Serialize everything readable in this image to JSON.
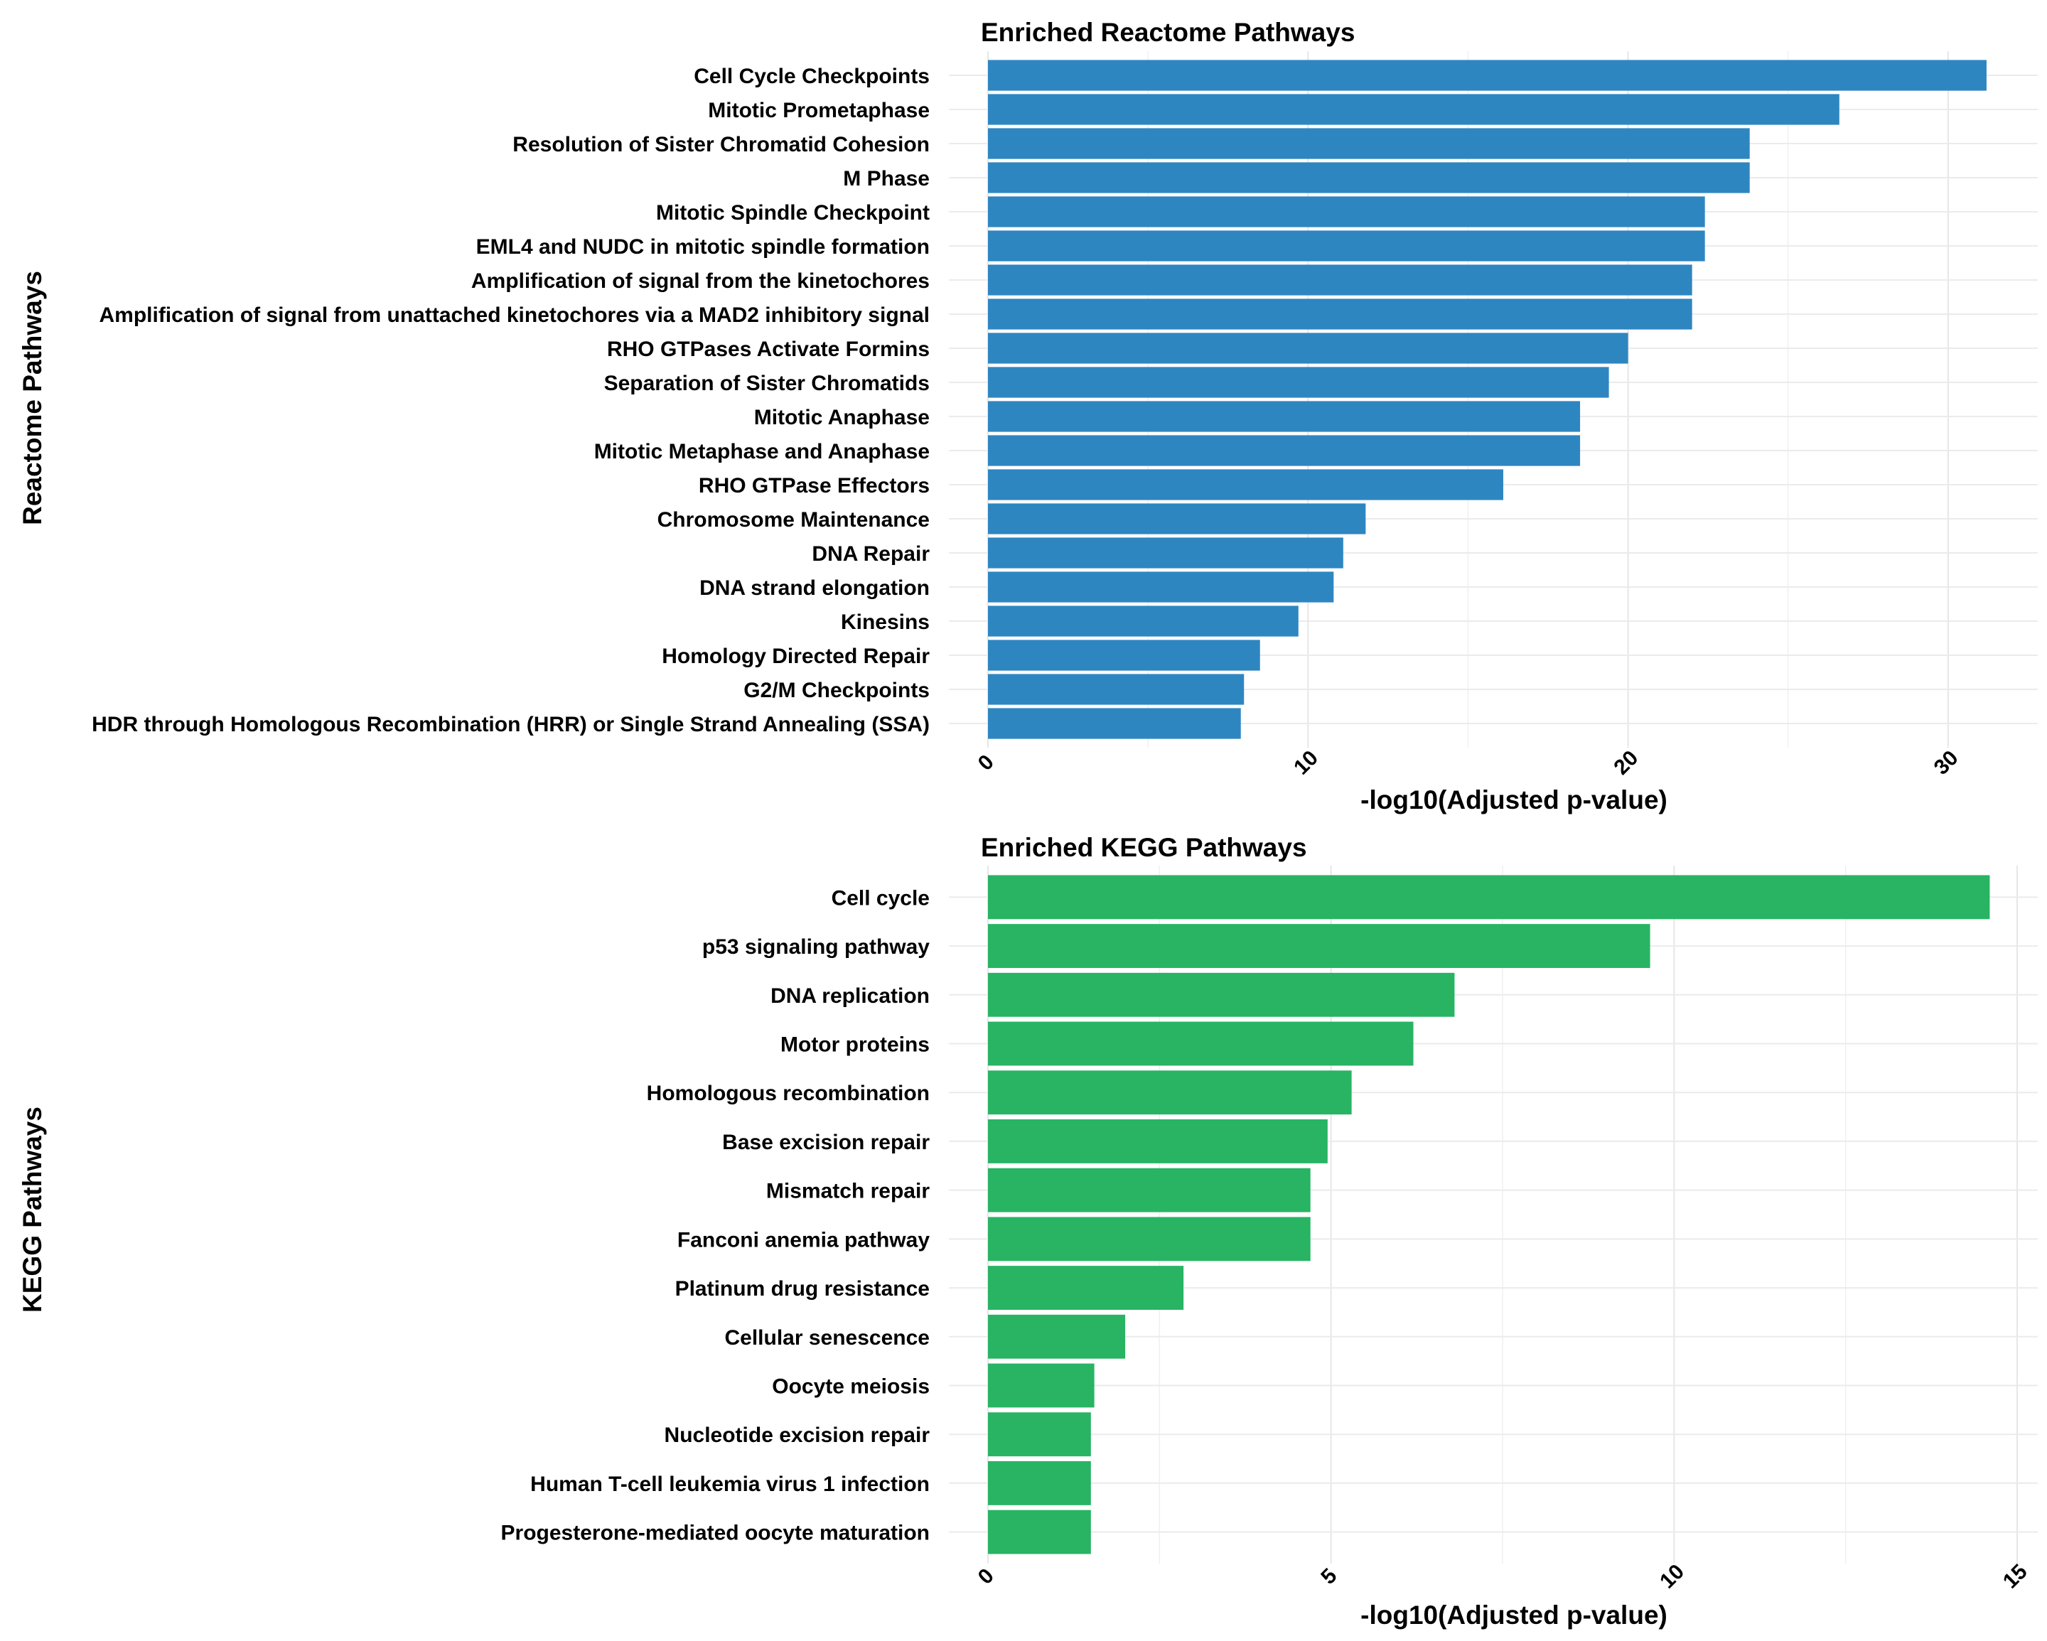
{
  "chart_data": [
    {
      "type": "bar",
      "orientation": "horizontal",
      "title": "Enriched Reactome Pathways",
      "xlabel": "-log10(Adjusted p-value)",
      "ylabel": "Reactome Pathways",
      "color": "#2E86C1",
      "xlim": [
        0,
        32.8
      ],
      "xticks": [
        0,
        10,
        20,
        30
      ],
      "grid": true,
      "categories": [
        "Cell Cycle Checkpoints",
        "Mitotic Prometaphase",
        "Resolution of Sister Chromatid Cohesion",
        "M Phase",
        "Mitotic Spindle Checkpoint",
        "EML4 and NUDC in mitotic spindle formation",
        "Amplification of signal from the kinetochores",
        "Amplification  of signal from unattached  kinetochores via a MAD2  inhibitory signal",
        "RHO GTPases Activate Formins",
        "Separation of Sister Chromatids",
        "Mitotic Anaphase",
        "Mitotic Metaphase and Anaphase",
        "RHO GTPase Effectors",
        "Chromosome Maintenance",
        "DNA Repair",
        "DNA strand elongation",
        "Kinesins",
        "Homology Directed Repair",
        "G2/M Checkpoints",
        "HDR through Homologous Recombination (HRR) or Single Strand Annealing (SSA)"
      ],
      "values": [
        31.2,
        26.6,
        23.8,
        23.8,
        22.4,
        22.4,
        22.0,
        22.0,
        20.0,
        19.4,
        18.5,
        18.5,
        16.1,
        11.8,
        11.1,
        10.8,
        9.7,
        8.5,
        8.0,
        7.9
      ]
    },
    {
      "type": "bar",
      "orientation": "horizontal",
      "title": "Enriched KEGG Pathways",
      "xlabel": "-log10(Adjusted p-value)",
      "ylabel": "KEGG Pathways",
      "color": "#28B463",
      "xlim": [
        0,
        15.3
      ],
      "xticks": [
        0,
        5,
        10,
        15
      ],
      "grid": true,
      "categories": [
        "Cell cycle",
        "p53 signaling pathway",
        "DNA replication",
        "Motor proteins",
        "Homologous recombination",
        "Base excision repair",
        "Mismatch repair",
        "Fanconi anemia pathway",
        "Platinum drug resistance",
        "Cellular senescence",
        "Oocyte meiosis",
        "Nucleotide excision repair",
        "Human T-cell leukemia virus 1 infection",
        "Progesterone-mediated oocyte maturation"
      ],
      "values": [
        14.6,
        9.65,
        6.8,
        6.2,
        5.3,
        4.95,
        4.7,
        4.7,
        2.85,
        2.0,
        1.55,
        1.5,
        1.5,
        1.5
      ]
    }
  ]
}
